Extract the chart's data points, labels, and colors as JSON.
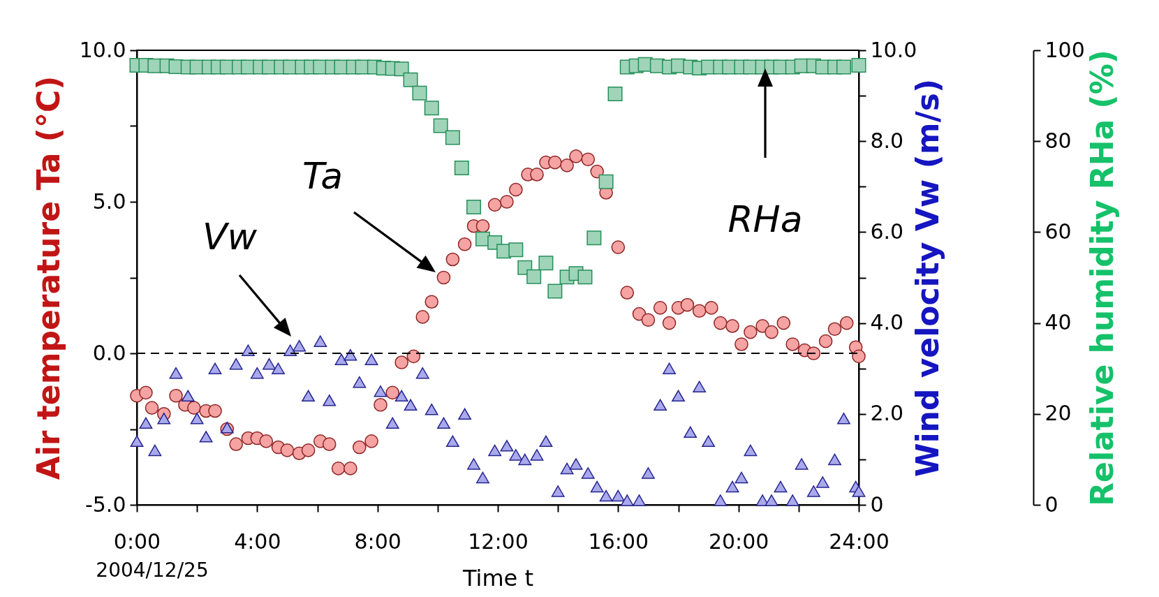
{
  "chart_data": {
    "type": "scatter",
    "xlabel": "Time t",
    "ylabel": "Air temperature Ta (°C)",
    "y2label": "Wind velocity Vw (m/s)",
    "y3label": "Relative humidity RHa (%)",
    "xlim": [
      0,
      24
    ],
    "xticks": [
      {
        "value": 0,
        "label": "0:00"
      },
      {
        "value": 2,
        "label": null
      },
      {
        "value": 4,
        "label": "4:00"
      },
      {
        "value": 6,
        "label": null
      },
      {
        "value": 8,
        "label": "8:00"
      },
      {
        "value": 10,
        "label": null
      },
      {
        "value": 12,
        "label": "12:00"
      },
      {
        "value": 14,
        "label": null
      },
      {
        "value": 16,
        "label": "16:00"
      },
      {
        "value": 18,
        "label": null
      },
      {
        "value": 20,
        "label": "20:00"
      },
      {
        "value": 22,
        "label": null
      },
      {
        "value": 24,
        "label": "24:00"
      }
    ],
    "ylim": [
      -5,
      10
    ],
    "yticks": [
      {
        "value": -5,
        "label": "-5.0"
      },
      {
        "value": -2.5,
        "label": null
      },
      {
        "value": 0,
        "label": "0.0"
      },
      {
        "value": 2.5,
        "label": null
      },
      {
        "value": 5,
        "label": "5.0"
      },
      {
        "value": 7.5,
        "label": null
      },
      {
        "value": 10,
        "label": "10.0"
      }
    ],
    "y2lim": [
      0,
      10
    ],
    "y2ticks": [
      0,
      {
        "value": 1,
        "label": null
      },
      {
        "value": 2,
        "label": "2.0"
      },
      {
        "value": 3,
        "label": null
      },
      {
        "value": 4,
        "label": "4.0"
      },
      {
        "value": 5,
        "label": null
      },
      {
        "value": 6,
        "label": "6.0"
      },
      {
        "value": 7,
        "label": null
      },
      {
        "value": 8,
        "label": "8.0"
      },
      {
        "value": 9,
        "label": null
      },
      {
        "value": 10,
        "label": "10.0"
      }
    ],
    "y3lim": [
      0,
      100
    ],
    "y3ticks": [
      0,
      20,
      40,
      60,
      80,
      100
    ],
    "grid": false,
    "ref_lines": [
      {
        "axis": "y",
        "value": 0,
        "line_style": "dashed",
        "color": "#000000"
      }
    ],
    "series": [
      {
        "axis": "y",
        "marker": "circle",
        "color": "#f5a3a3",
        "x": [
          0.0,
          0.3,
          0.5,
          0.9,
          1.3,
          1.6,
          1.9,
          2.3,
          2.6,
          3.0,
          3.3,
          3.7,
          4.0,
          4.3,
          4.7,
          5.0,
          5.4,
          5.7,
          6.1,
          6.4,
          6.7,
          7.1,
          7.4,
          7.8,
          8.1,
          8.5,
          8.8,
          9.2,
          9.5,
          9.8,
          10.2,
          10.5,
          10.9,
          11.2,
          11.5,
          11.9,
          12.3,
          12.6,
          13.0,
          13.3,
          13.6,
          13.9,
          14.3,
          14.6,
          15.0,
          15.3,
          15.6,
          16.0,
          16.3,
          16.7,
          17.0,
          17.4,
          17.7,
          18.0,
          18.3,
          18.7,
          19.1,
          19.4,
          19.8,
          20.1,
          20.4,
          20.8,
          21.1,
          21.5,
          21.8,
          22.2,
          22.5,
          22.9,
          23.2,
          23.6,
          23.9,
          24.0
        ],
        "values": [
          -1.4,
          -1.3,
          -1.8,
          -2.0,
          -1.4,
          -1.7,
          -1.8,
          -1.9,
          -1.9,
          -2.5,
          -3.0,
          -2.8,
          -2.8,
          -2.9,
          -3.1,
          -3.2,
          -3.3,
          -3.2,
          -2.9,
          -3.0,
          -3.8,
          -3.8,
          -3.1,
          -2.9,
          -1.7,
          -1.3,
          -0.3,
          -0.1,
          1.2,
          1.7,
          2.5,
          3.1,
          3.6,
          4.2,
          4.2,
          4.9,
          5.0,
          5.4,
          5.9,
          5.9,
          6.3,
          6.3,
          6.2,
          6.5,
          6.4,
          6.0,
          5.3,
          3.5,
          2.0,
          1.3,
          1.1,
          1.5,
          1.0,
          1.5,
          1.6,
          1.4,
          1.5,
          1.0,
          0.9,
          0.3,
          0.7,
          0.9,
          0.7,
          1.0,
          0.3,
          0.1,
          0.0,
          0.4,
          0.8,
          1.0,
          0.2,
          -0.1
        ]
      },
      {
        "axis": "y2",
        "marker": "triangle",
        "color": "#a9a9ec",
        "x": [
          0.0,
          0.3,
          0.6,
          0.9,
          1.3,
          1.7,
          2.0,
          2.3,
          2.6,
          3.0,
          3.3,
          3.7,
          4.0,
          4.4,
          4.7,
          5.1,
          5.4,
          5.7,
          6.1,
          6.4,
          6.8,
          7.1,
          7.4,
          7.8,
          8.1,
          8.5,
          8.8,
          9.1,
          9.5,
          9.8,
          10.2,
          10.5,
          10.9,
          11.2,
          11.5,
          11.9,
          12.3,
          12.6,
          12.9,
          13.3,
          13.6,
          14.0,
          14.3,
          14.6,
          15.0,
          15.3,
          15.6,
          16.0,
          16.3,
          16.7,
          17.0,
          17.4,
          17.7,
          18.0,
          18.4,
          18.7,
          19.0,
          19.4,
          19.8,
          20.1,
          20.4,
          20.8,
          21.1,
          21.4,
          21.8,
          22.1,
          22.5,
          22.8,
          23.2,
          23.5,
          23.9,
          24.0
        ],
        "values": [
          1.4,
          1.8,
          1.2,
          1.9,
          2.9,
          2.4,
          1.9,
          1.5,
          3.0,
          1.7,
          3.1,
          3.4,
          2.9,
          3.1,
          3.0,
          3.4,
          3.5,
          2.4,
          3.6,
          2.3,
          3.2,
          3.3,
          2.7,
          3.2,
          2.5,
          1.8,
          2.4,
          2.2,
          2.9,
          2.1,
          1.8,
          1.4,
          2.0,
          0.9,
          0.6,
          1.2,
          1.3,
          1.1,
          1.0,
          1.1,
          1.4,
          0.3,
          0.8,
          0.9,
          0.7,
          0.4,
          0.2,
          0.2,
          0.1,
          0.1,
          0.7,
          2.2,
          3.0,
          2.4,
          1.6,
          2.6,
          1.4,
          0.1,
          0.4,
          0.6,
          1.2,
          0.1,
          0.1,
          0.4,
          0.1,
          0.9,
          0.3,
          0.5,
          1.0,
          1.9,
          0.4,
          0.3
        ]
      },
      {
        "axis": "y3",
        "marker": "square",
        "color": "#9fd4b9",
        "x": [
          0.0,
          0.3,
          0.6,
          1.0,
          1.3,
          1.7,
          2.0,
          2.4,
          2.7,
          3.0,
          3.4,
          3.7,
          4.1,
          4.4,
          4.8,
          5.1,
          5.5,
          5.8,
          6.1,
          6.5,
          6.8,
          7.2,
          7.5,
          7.9,
          8.2,
          8.5,
          8.8,
          9.1,
          9.4,
          9.8,
          10.1,
          10.5,
          10.8,
          11.2,
          11.5,
          11.9,
          12.2,
          12.6,
          12.9,
          13.2,
          13.6,
          13.9,
          14.3,
          14.6,
          14.9,
          15.2,
          15.6,
          15.9,
          16.3,
          16.6,
          16.9,
          17.3,
          17.7,
          18.0,
          18.4,
          18.7,
          19.0,
          19.4,
          19.7,
          20.1,
          20.4,
          20.8,
          21.1,
          21.4,
          21.8,
          22.1,
          22.5,
          22.8,
          23.2,
          23.5,
          24.0
        ],
        "values": [
          96.7,
          96.7,
          96.6,
          96.6,
          96.4,
          96.3,
          96.3,
          96.3,
          96.3,
          96.3,
          96.3,
          96.3,
          96.3,
          96.3,
          96.3,
          96.3,
          96.3,
          96.3,
          96.3,
          96.3,
          96.3,
          96.3,
          96.3,
          96.3,
          96.1,
          96.0,
          95.9,
          93.5,
          90.6,
          87.3,
          83.4,
          80.8,
          74.1,
          65.5,
          58.5,
          57.7,
          55.8,
          56.1,
          52.2,
          50.2,
          53.2,
          47.0,
          50.1,
          50.9,
          50.1,
          58.7,
          71.1,
          90.4,
          96.3,
          96.6,
          96.9,
          96.6,
          96.3,
          96.6,
          96.3,
          96.1,
          96.3,
          96.3,
          96.3,
          96.3,
          96.3,
          96.3,
          96.3,
          96.3,
          96.3,
          96.6,
          96.6,
          96.3,
          96.3,
          96.3,
          96.7
        ]
      }
    ],
    "annotations": [
      "Ta",
      "Vw",
      "RHa",
      "2004/12/25"
    ]
  }
}
